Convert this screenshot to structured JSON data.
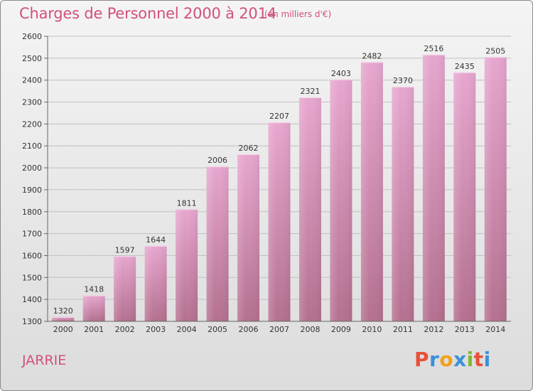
{
  "header": {
    "title": "Charges de Personnel 2000 à 2014",
    "subtitle": "(en milliers d'€)"
  },
  "footer": {
    "town": "JARRIE",
    "logo_letters": [
      "P",
      "r",
      "o",
      "x",
      "i",
      "t",
      "i"
    ],
    "logo_colors": [
      "#e8503a",
      "#3a8fd9",
      "#f2a019",
      "#3a8fd9",
      "#7dbb2f",
      "#e8503a",
      "#3a8fd9"
    ]
  },
  "colors": {
    "title": "#d1507d",
    "bar_top": "#e7a6cf",
    "bar_bottom": "#b4708f",
    "grid": "#c0c0c0"
  },
  "chart_data": {
    "type": "bar",
    "title": "Charges de Personnel 2000 à 2014",
    "subtitle": "(en milliers d'€)",
    "categories": [
      "2000",
      "2001",
      "2002",
      "2003",
      "2004",
      "2005",
      "2006",
      "2007",
      "2008",
      "2009",
      "2010",
      "2011",
      "2012",
      "2013",
      "2014"
    ],
    "values": [
      1320,
      1418,
      1597,
      1644,
      1811,
      2006,
      2062,
      2207,
      2321,
      2403,
      2482,
      2370,
      2516,
      2435,
      2505
    ],
    "ylim": [
      1300,
      2600
    ],
    "yticks": [
      1300,
      1400,
      1500,
      1600,
      1700,
      1800,
      1900,
      2000,
      2100,
      2200,
      2300,
      2400,
      2500,
      2600
    ],
    "grid": true,
    "legend": "none"
  }
}
